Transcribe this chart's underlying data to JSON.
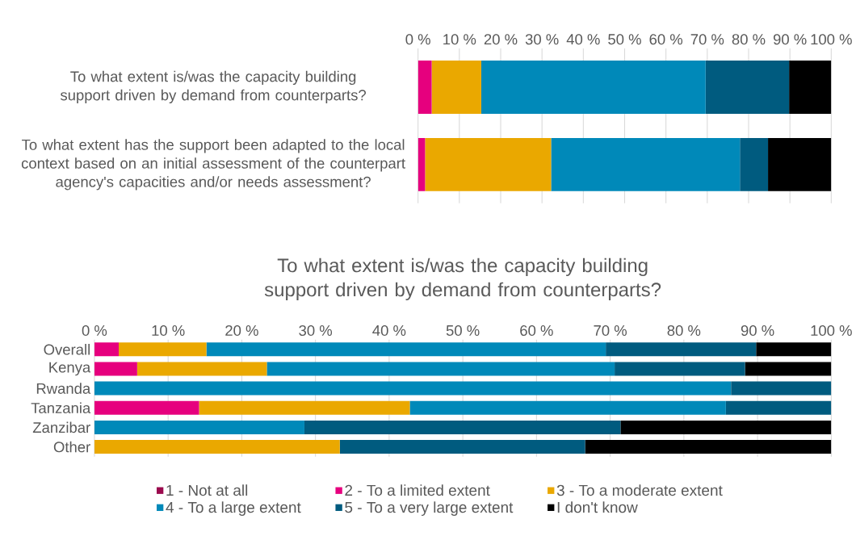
{
  "chart_data": [
    {
      "type": "bar",
      "orientation": "horizontal",
      "stacked": true,
      "grid": "x",
      "legend": false,
      "categories": [
        "To what extent is/was the capacity building support driven by demand from counterparts?",
        "To what extent has the support been adapted to the local context based on an initial assessment of the counterpart agency's capacities and/or needs assessment?"
      ],
      "xlim": [
        0,
        100
      ],
      "xticks": [
        {
          "value": 0,
          "label": "0 %"
        },
        {
          "value": 10,
          "label": "10 %"
        },
        {
          "value": 20,
          "label": "20 %"
        },
        {
          "value": 30,
          "label": "30 %"
        },
        {
          "value": 40,
          "label": "40 %"
        },
        {
          "value": 50,
          "label": "50 %"
        },
        {
          "value": 60,
          "label": "60 %"
        },
        {
          "value": 70,
          "label": "70 %"
        },
        {
          "value": 80,
          "label": "80 %"
        },
        {
          "value": 90,
          "label": "90 %"
        },
        {
          "value": 100,
          "label": "100 %"
        }
      ],
      "series": [
        {
          "color": "#9b0a4e",
          "values": [
            0,
            0
          ]
        },
        {
          "color": "#e6007e",
          "values": [
            3.3,
            1.7
          ]
        },
        {
          "color": "#eaa800",
          "values": [
            12.0,
            30.5
          ]
        },
        {
          "color": "#0089b9",
          "values": [
            54.3,
            45.7
          ]
        },
        {
          "color": "#005b7f",
          "values": [
            20.2,
            6.8
          ]
        },
        {
          "color": "#000000",
          "values": [
            10.2,
            15.3
          ]
        }
      ]
    },
    {
      "type": "bar",
      "orientation": "horizontal",
      "stacked": true,
      "grid": "x",
      "legend": "bottom",
      "title": "To what extent is/was the capacity building support driven by demand from counterparts?",
      "categories": [
        "Overall",
        "Kenya",
        "Rwanda",
        "Tanzania",
        "Zanzibar",
        "Other"
      ],
      "xlim": [
        0,
        100
      ],
      "xticks": [
        {
          "value": 0,
          "label": "0 %"
        },
        {
          "value": 10,
          "label": "10 %"
        },
        {
          "value": 20,
          "label": "20 %"
        },
        {
          "value": 30,
          "label": "30 %"
        },
        {
          "value": 40,
          "label": "40 %"
        },
        {
          "value": 50,
          "label": "50 %"
        },
        {
          "value": 60,
          "label": "60 %"
        },
        {
          "value": 70,
          "label": "70 %"
        },
        {
          "value": 80,
          "label": "80 %"
        },
        {
          "value": 90,
          "label": "90 %"
        },
        {
          "value": 100,
          "label": "100 %"
        }
      ],
      "series": [
        {
          "name": "1 - Not at all",
          "color": "#9b0a4e",
          "values": [
            0,
            0,
            0,
            0,
            0,
            0
          ]
        },
        {
          "name": "2 - To a limited extent",
          "color": "#e6007e",
          "values": [
            3.3,
            5.8,
            0,
            14.2,
            0,
            0
          ]
        },
        {
          "name": "3 - To a moderate extent",
          "color": "#eaa800",
          "values": [
            11.9,
            17.6,
            0,
            28.6,
            0,
            33.3
          ]
        },
        {
          "name": "4 - To a large extent",
          "color": "#0089b9",
          "values": [
            54.2,
            47.2,
            86.4,
            42.9,
            28.5,
            0
          ]
        },
        {
          "name": "5 - To a very large extent",
          "color": "#005b7f",
          "values": [
            20.4,
            17.7,
            13.6,
            14.3,
            42.9,
            33.3
          ]
        },
        {
          "name": "I don't know",
          "color": "#000000",
          "values": [
            10.2,
            11.7,
            0,
            0,
            28.6,
            33.4
          ]
        }
      ]
    }
  ]
}
